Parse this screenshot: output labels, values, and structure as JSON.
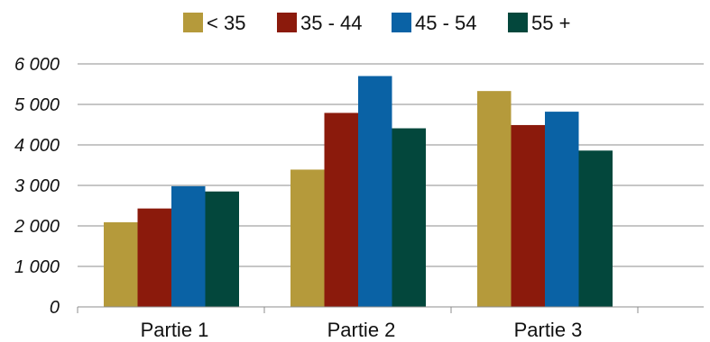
{
  "chart_data": {
    "type": "bar",
    "title": "",
    "xlabel": "",
    "ylabel": "",
    "categories": [
      "Partie 1",
      "Partie 2",
      "Partie 3"
    ],
    "series": [
      {
        "name": "< 35",
        "color": "#b59a3b",
        "values": [
          2090,
          3390,
          5330
        ]
      },
      {
        "name": "35 - 44",
        "color": "#8b1a0c",
        "values": [
          2430,
          4790,
          4490
        ]
      },
      {
        "name": "45 - 54",
        "color": "#0a62a5",
        "values": [
          2980,
          5700,
          4820
        ]
      },
      {
        "name": "55 +",
        "color": "#03473c",
        "values": [
          2850,
          4410,
          3860
        ]
      }
    ],
    "ylim": [
      0,
      6000
    ],
    "yticks": [
      0,
      1000,
      2000,
      3000,
      4000,
      5000,
      6000
    ],
    "ytick_labels": [
      "0",
      "1 000",
      "2 000",
      "3 000",
      "4 000",
      "5 000",
      "6 000"
    ],
    "grid": true,
    "legend_position": "top-center"
  }
}
